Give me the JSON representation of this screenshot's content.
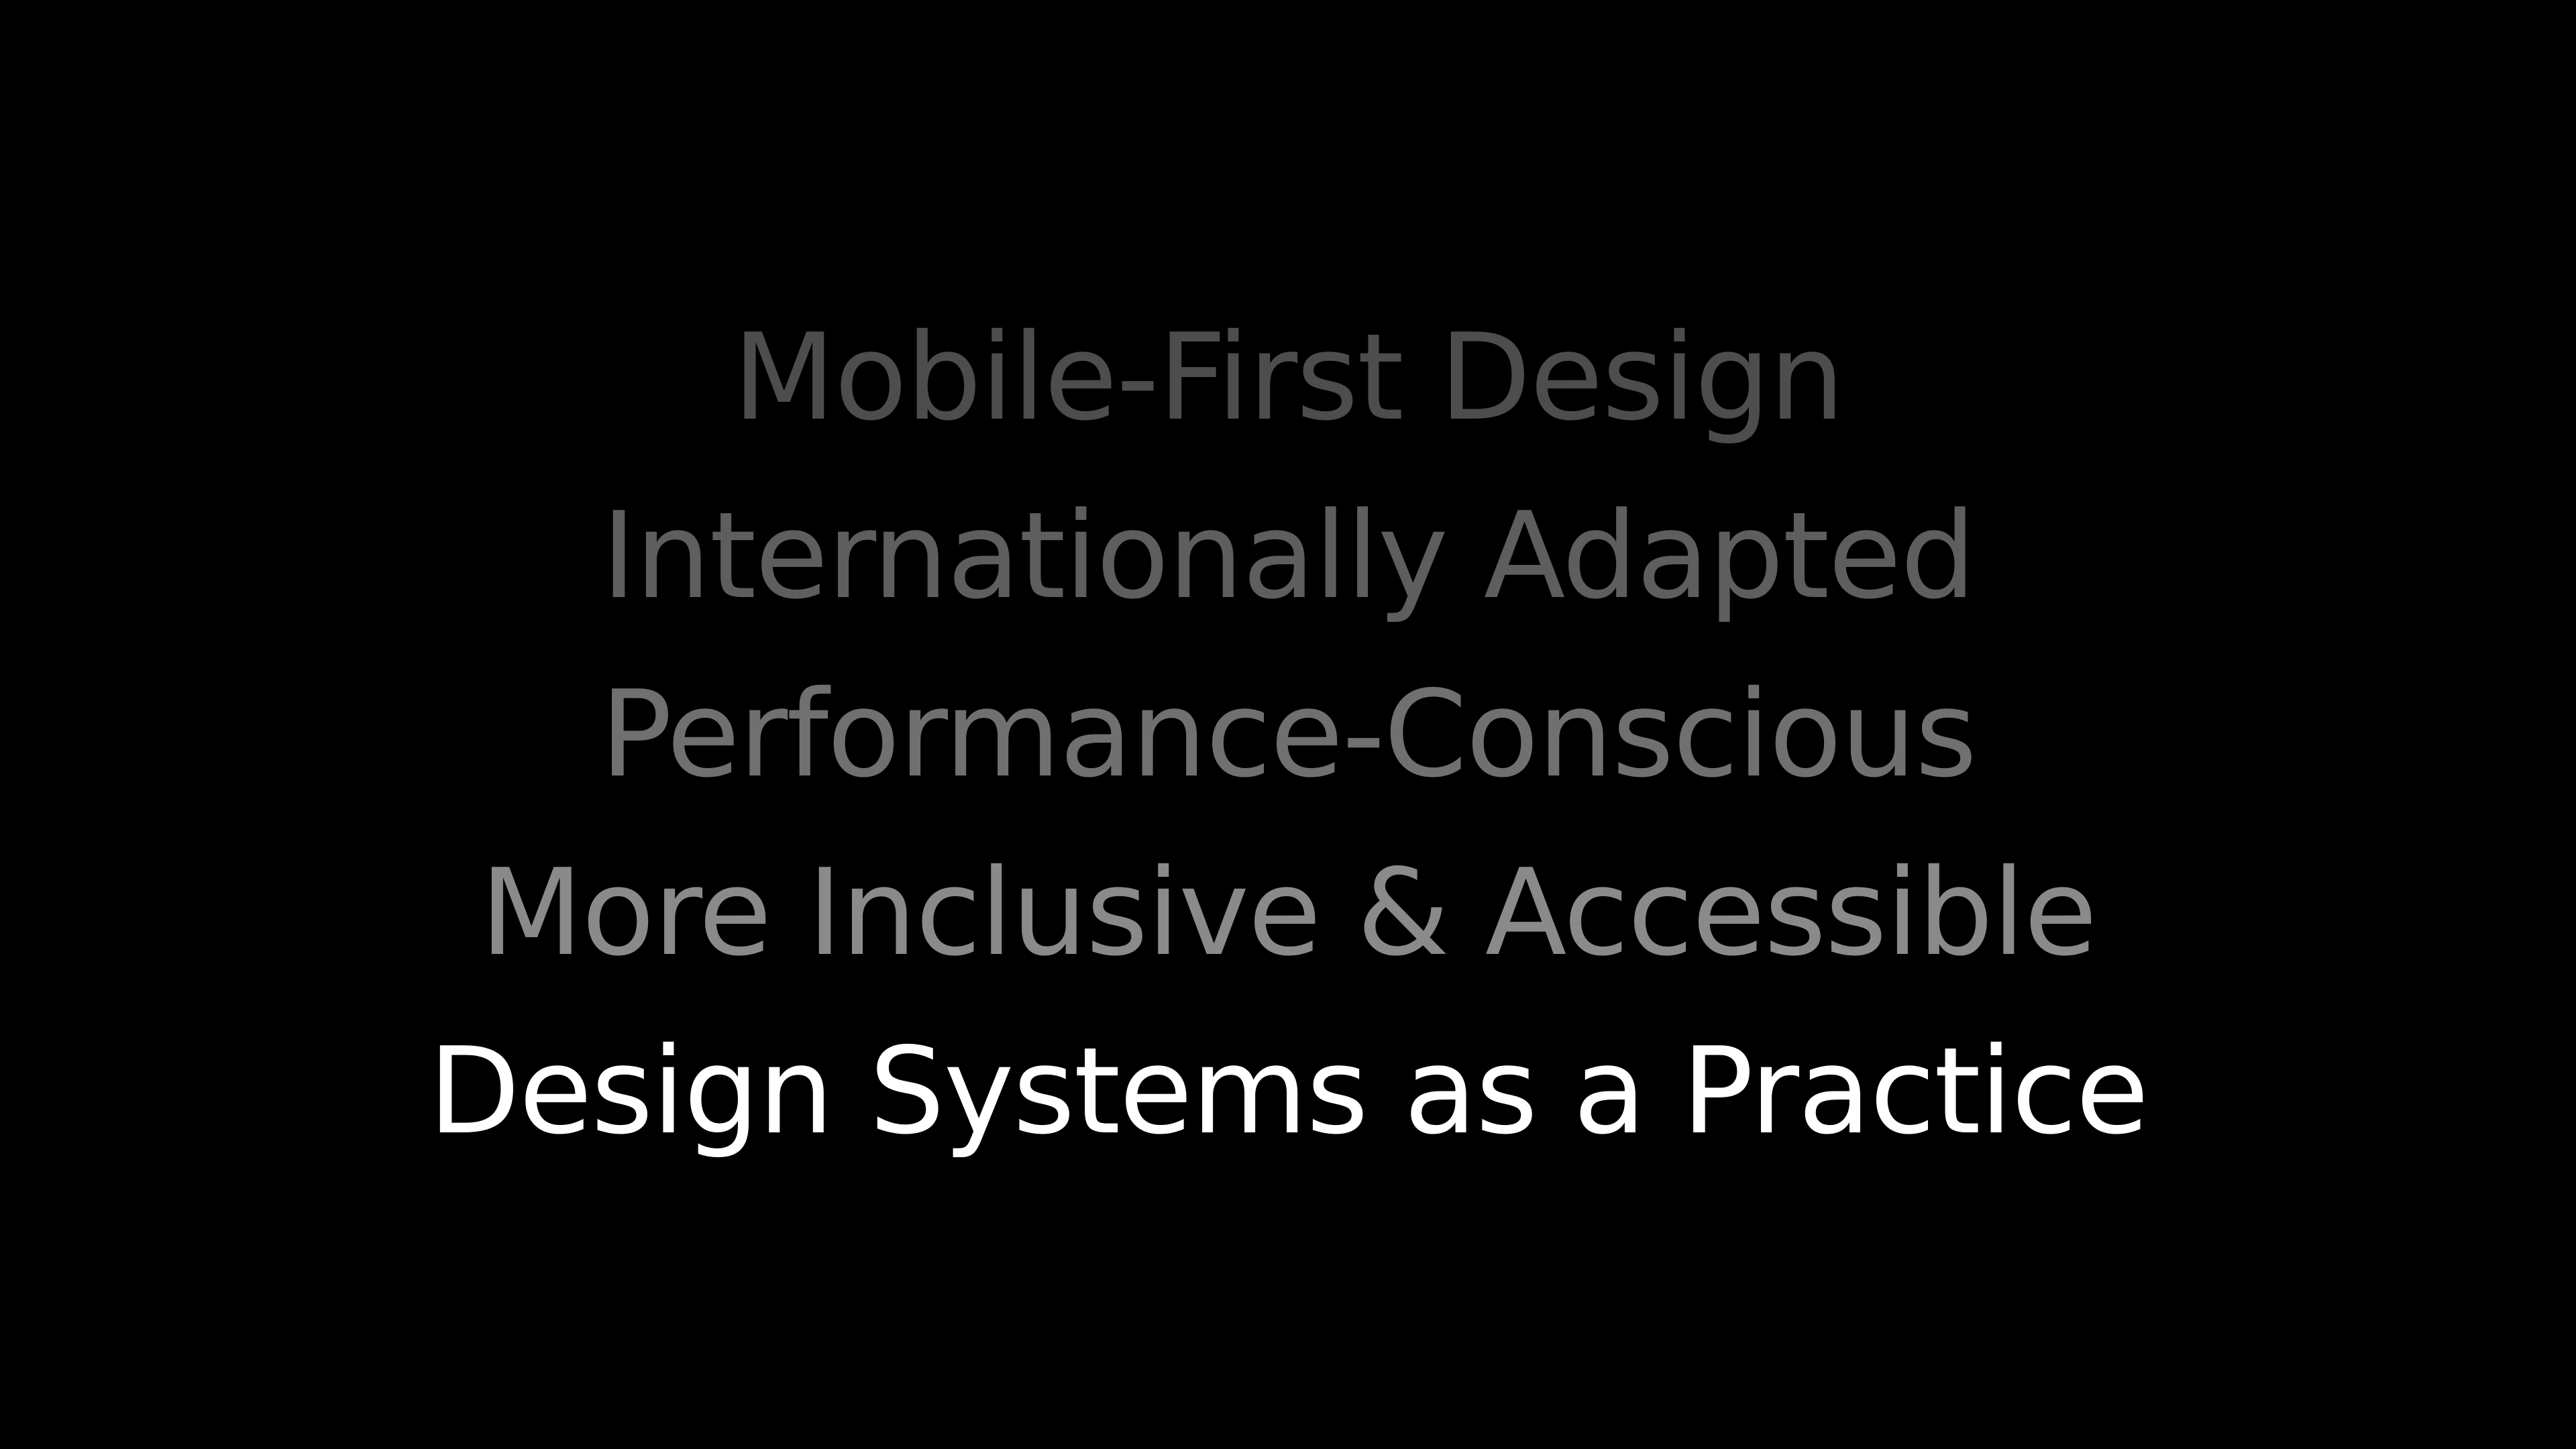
{
  "slide": {
    "background": "#000000",
    "lines": [
      {
        "text": "Mobile-First Design",
        "color": "#4d4d4d"
      },
      {
        "text": "Internationally Adapted",
        "color": "#5e5e5e"
      },
      {
        "text": "Performance-Conscious",
        "color": "#707070"
      },
      {
        "text": "More Inclusive & Accessible",
        "color": "#8a8a8a"
      },
      {
        "text": "Design Systems as a Practice",
        "color": "#ffffff"
      }
    ]
  }
}
